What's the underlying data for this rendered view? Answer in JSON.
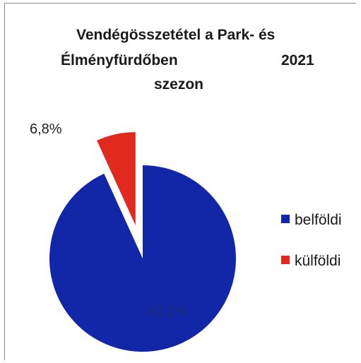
{
  "chart_data": {
    "type": "pie",
    "title_lines": [
      "Vendégösszetétel a Park- és",
      "Élményfürdőben",
      "2021",
      "szezon"
    ],
    "categories": [
      "belföldi",
      "külföldi"
    ],
    "values": [
      93.2,
      6.8
    ],
    "value_labels": [
      "93,2%",
      "6,8%"
    ],
    "colors": [
      "#1226a8",
      "#e0291f"
    ],
    "exploded": [
      false,
      true
    ],
    "legend_position": "right"
  }
}
